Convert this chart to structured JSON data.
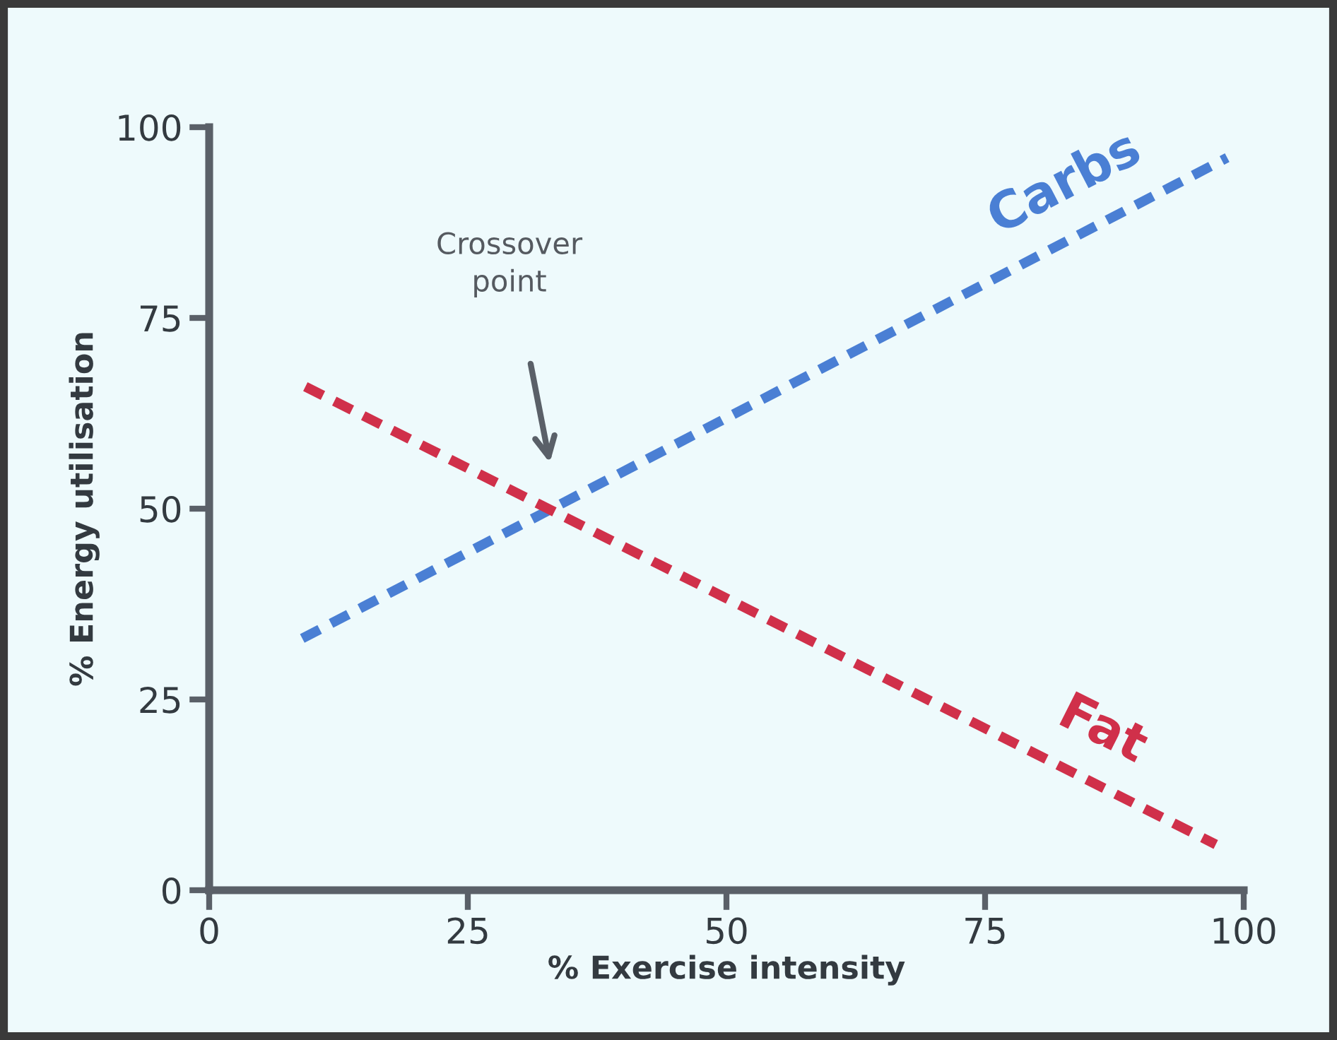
{
  "chart_data": {
    "type": "line",
    "xlabel": "% Exercise intensity",
    "ylabel": "% Energy utilisation",
    "xlim": [
      0,
      100
    ],
    "ylim": [
      0,
      100
    ],
    "xticks": [
      0,
      25,
      50,
      75,
      100
    ],
    "yticks": [
      0,
      25,
      50,
      75,
      100
    ],
    "line_style": "dashed",
    "marker": "none",
    "grid": false,
    "series": [
      {
        "name": "Carbs",
        "color": "#4a7fd4",
        "x": [
          9,
          98.4
        ],
        "values": [
          33,
          96
        ]
      },
      {
        "name": "Fat",
        "color": "#d0304a",
        "x": [
          9.3,
          97.3
        ],
        "values": [
          66,
          6
        ]
      }
    ],
    "annotations": [
      "Crossover\npoint"
    ]
  }
}
